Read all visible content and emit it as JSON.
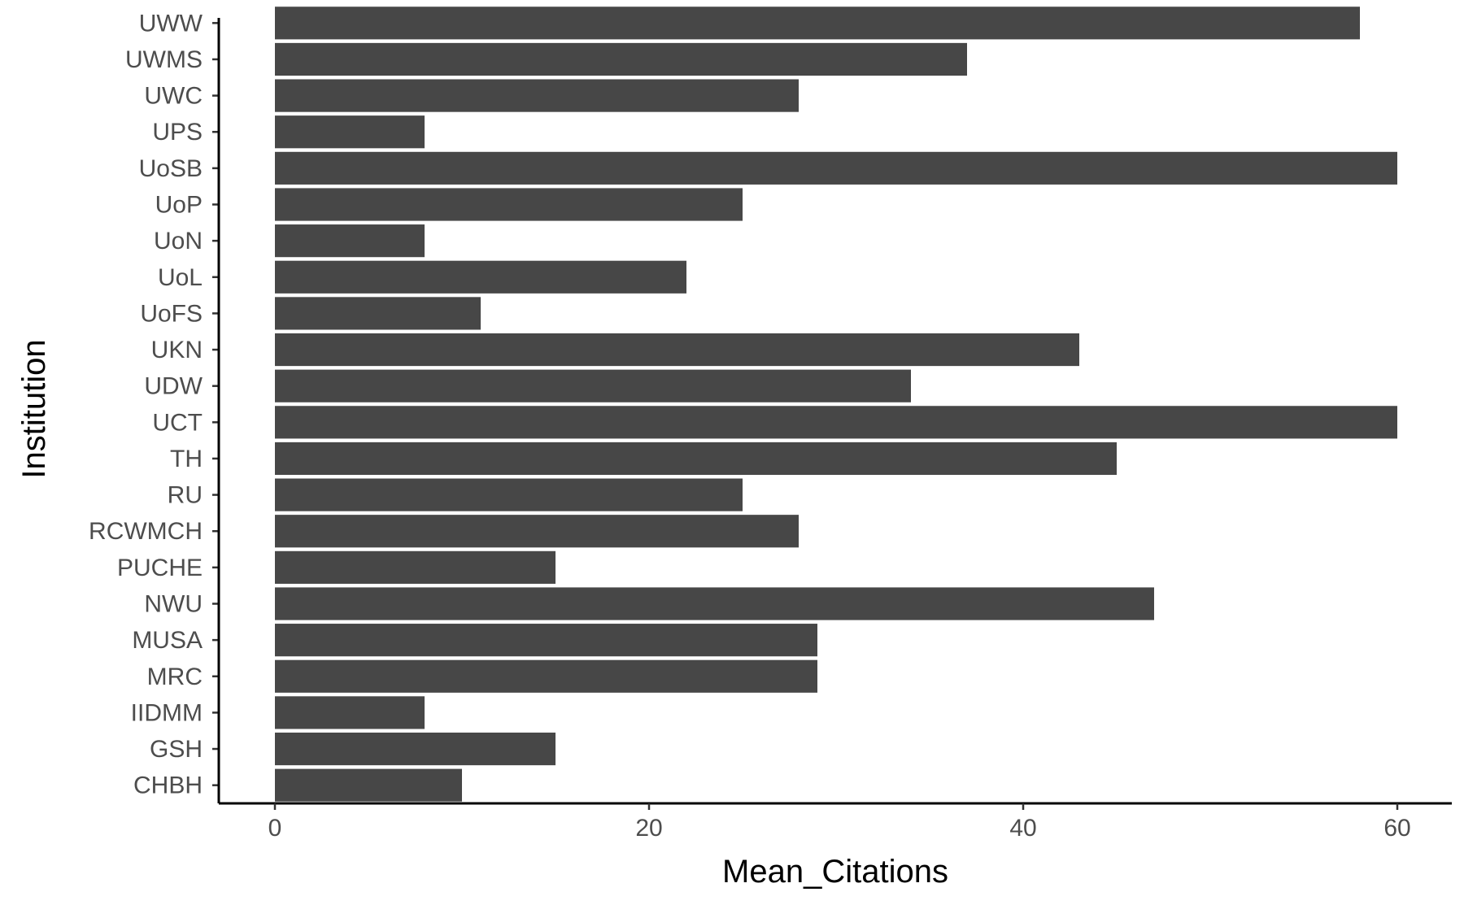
{
  "chart_data": {
    "type": "bar",
    "orientation": "horizontal",
    "title": "",
    "xlabel": "Mean_Citations",
    "ylabel": "Institution",
    "categories": [
      "CHBH",
      "GSH",
      "IIDMM",
      "MRC",
      "MUSA",
      "NWU",
      "PUCHE",
      "RCWMCH",
      "RU",
      "TH",
      "UCT",
      "UDW",
      "UKN",
      "UoFS",
      "UoL",
      "UoN",
      "UoP",
      "UoSB",
      "UPS",
      "UWC",
      "UWMS",
      "UWW"
    ],
    "values": [
      10,
      15,
      8,
      29,
      29,
      47,
      15,
      28,
      25,
      45,
      60,
      34,
      43,
      11,
      22,
      8,
      25,
      60,
      8,
      28,
      37,
      58
    ],
    "xlim": [
      -3,
      63
    ],
    "xticks": [
      0,
      20,
      40,
      60
    ],
    "xtick_labels": [
      "0",
      "20",
      "40",
      "60"
    ],
    "grid": false,
    "bar_color": "#474747",
    "axis_color": "#000000"
  }
}
